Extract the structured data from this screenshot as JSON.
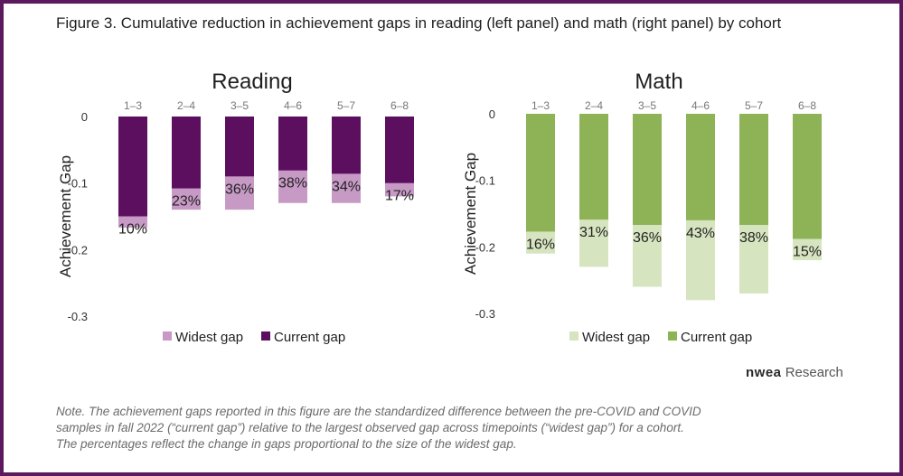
{
  "figure_title": "Figure 3. Cumulative reduction in achievement gaps in reading (left panel) and math (right panel) by cohort",
  "brand": {
    "logo_text": "nwea",
    "suffix": "Research"
  },
  "note_lines": [
    "Note. The achievement gaps reported in this figure are the standardized difference between the pre-COVID and COVID",
    "samples in fall 2022 (“current gap”) relative to the largest observed gap across timepoints (“widest gap”) for a cohort.",
    "The percentages reflect the change in gaps proportional to the size of the widest gap."
  ],
  "chart_data": [
    {
      "type": "bar",
      "title": "Reading",
      "ylabel": "Achievement Gap",
      "ylim": [
        -0.3,
        0
      ],
      "yticks": [
        "0",
        "-0.1",
        "-0.2",
        "-0.3"
      ],
      "ytick_values": [
        0,
        -0.1,
        -0.2,
        -0.3
      ],
      "categories": [
        "1–3",
        "2–4",
        "3–5",
        "4–6",
        "5–7",
        "6–8"
      ],
      "category_axis_position": "top",
      "series": [
        {
          "name": "Widest gap",
          "color": "#c79ac6",
          "values": [
            -0.167,
            -0.14,
            -0.14,
            -0.13,
            -0.13,
            -0.12
          ]
        },
        {
          "name": "Current gap",
          "color": "#5c0f5e",
          "values": [
            -0.15,
            -0.108,
            -0.09,
            -0.081,
            -0.086,
            -0.1
          ]
        }
      ],
      "data_labels": [
        "10%",
        "23%",
        "36%",
        "38%",
        "34%",
        "17%"
      ],
      "legend": {
        "placement": "bottom",
        "entries": [
          "Widest gap",
          "Current gap"
        ]
      }
    },
    {
      "type": "bar",
      "title": "Math",
      "ylabel": "Achievement Gap",
      "ylim": [
        -0.3,
        0
      ],
      "yticks": [
        "0",
        "-0.1",
        "-0.2",
        "-0.3"
      ],
      "ytick_values": [
        0,
        -0.1,
        -0.2,
        -0.3
      ],
      "categories": [
        "1–3",
        "2–4",
        "3–5",
        "4–6",
        "5–7",
        "6–8"
      ],
      "category_axis_position": "top",
      "series": [
        {
          "name": "Widest gap",
          "color": "#d7e4c0",
          "values": [
            -0.21,
            -0.23,
            -0.26,
            -0.28,
            -0.27,
            -0.22
          ]
        },
        {
          "name": "Current gap",
          "color": "#8db356",
          "values": [
            -0.177,
            -0.159,
            -0.167,
            -0.16,
            -0.167,
            -0.188
          ]
        }
      ],
      "data_labels": [
        "16%",
        "31%",
        "36%",
        "43%",
        "38%",
        "15%"
      ],
      "legend": {
        "placement": "bottom",
        "entries": [
          "Widest gap",
          "Current gap"
        ]
      }
    }
  ]
}
